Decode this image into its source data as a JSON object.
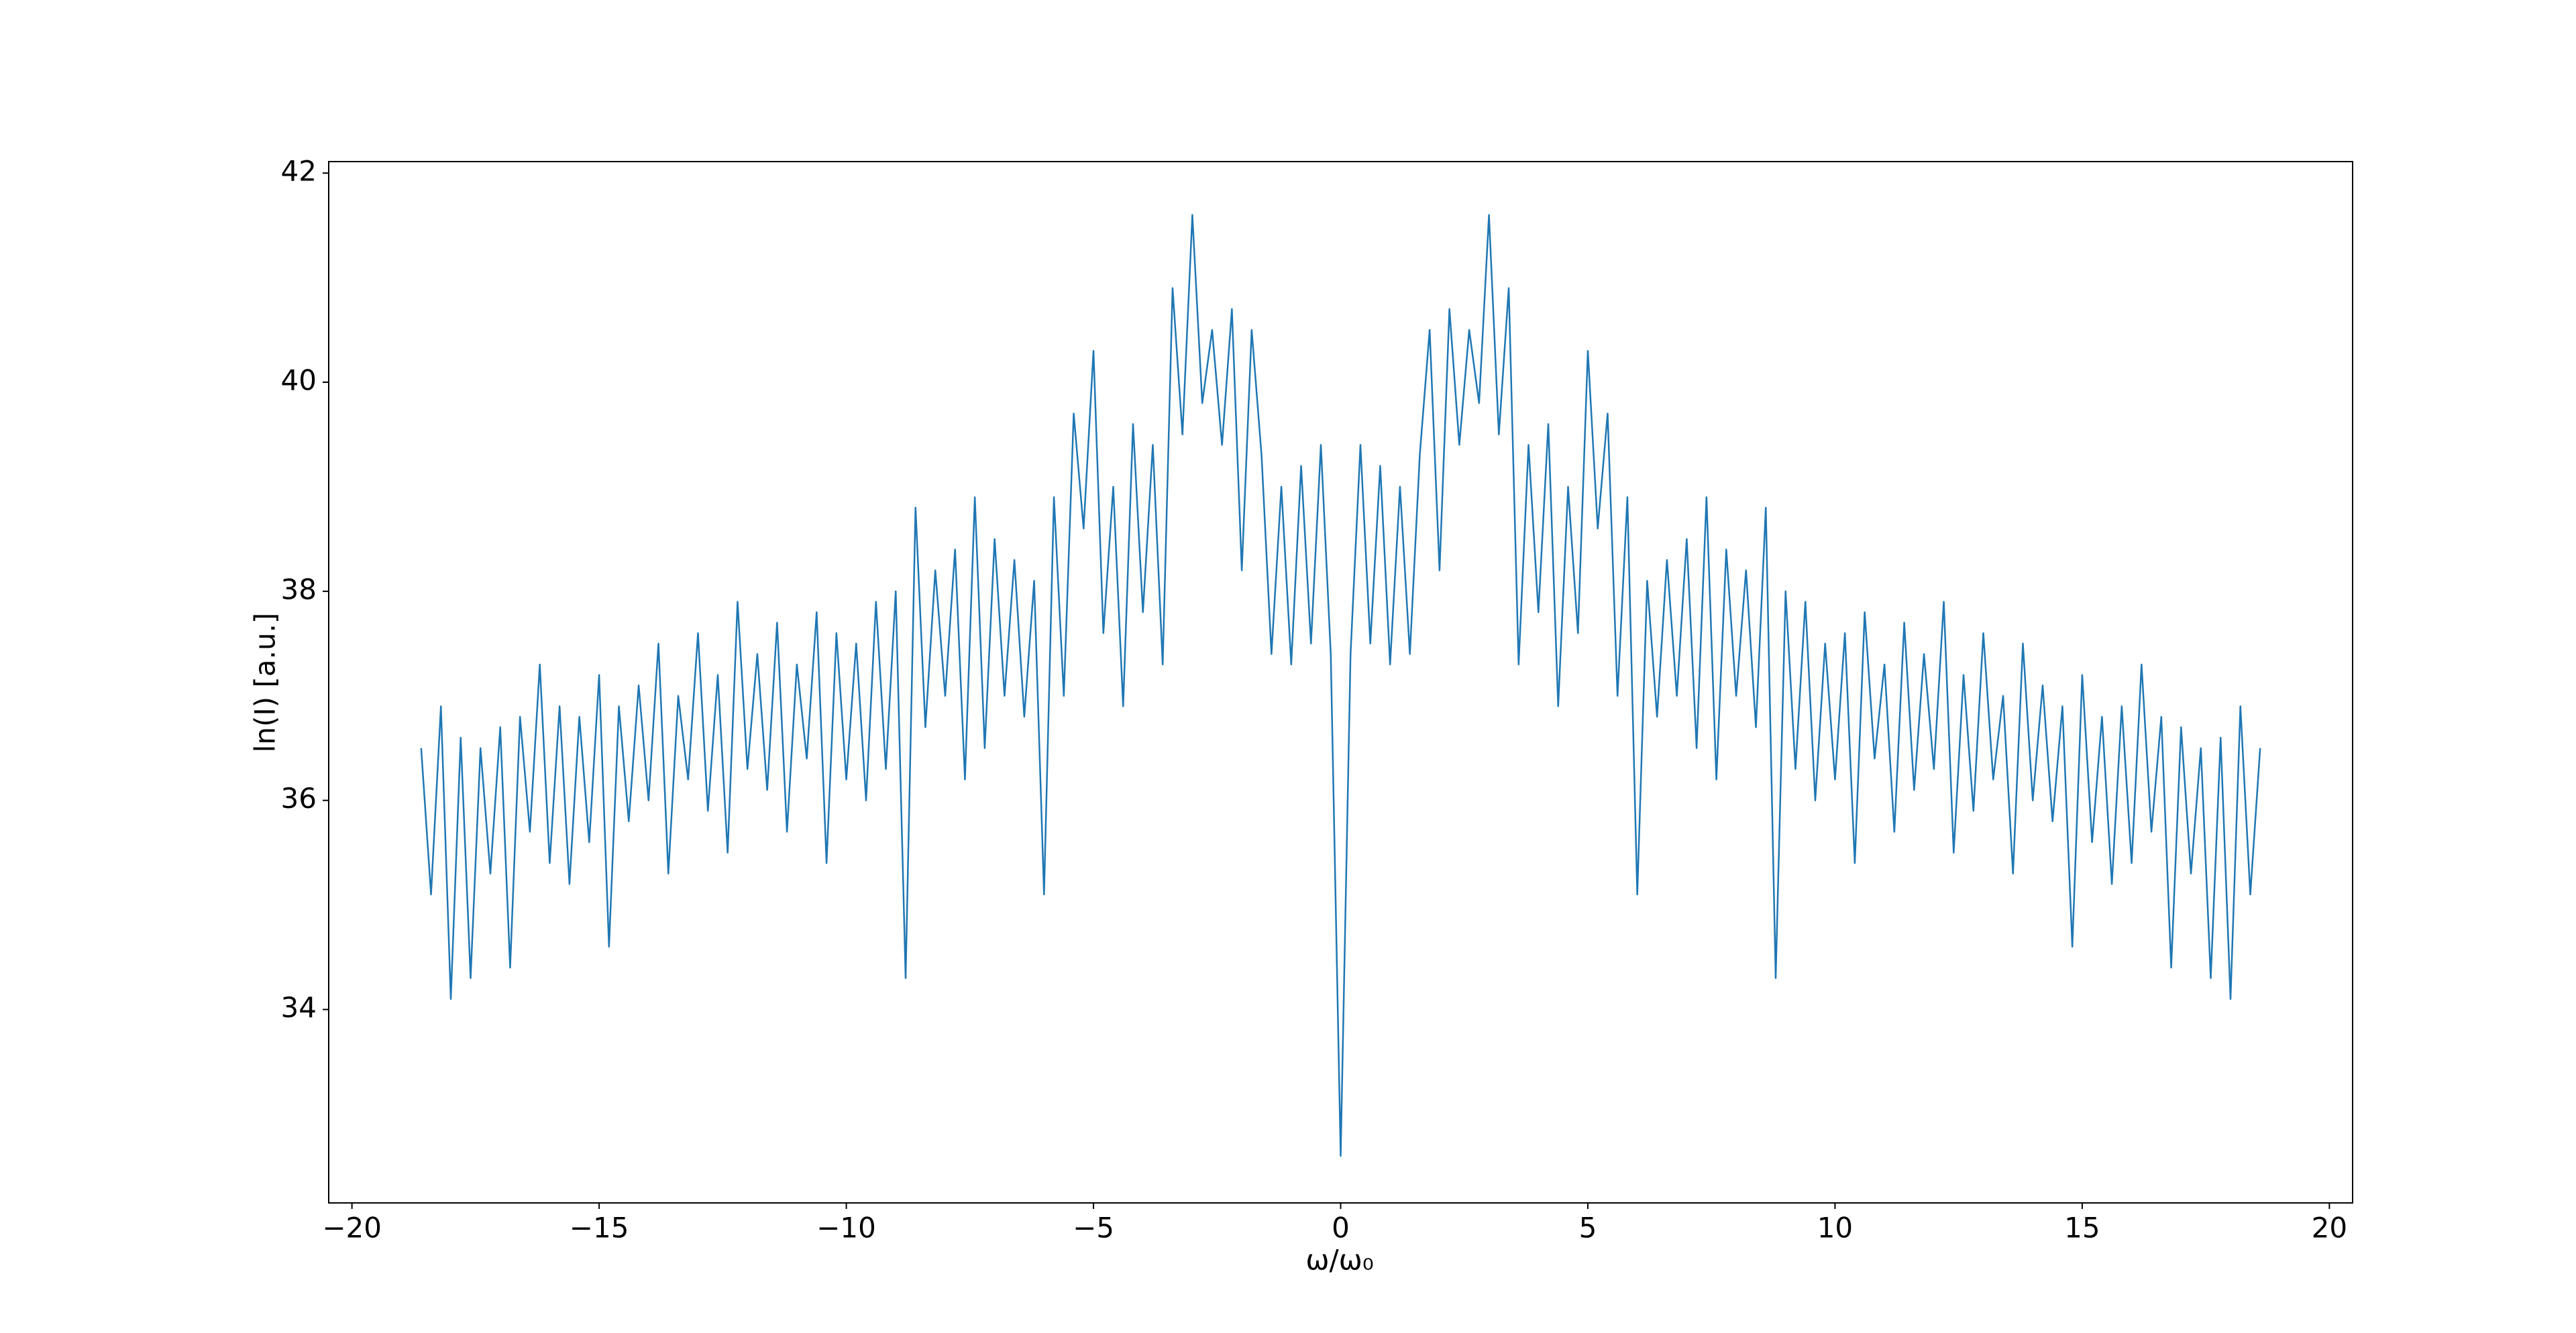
{
  "chart_data": {
    "type": "line",
    "xlabel": "ω/ω₀",
    "ylabel": "ln(I) [a.u.]",
    "color": "#1f77b4",
    "grid": false,
    "xlim": [
      -20.47,
      20.47
    ],
    "ylim": [
      32.15,
      42.11
    ],
    "xticks": [
      {
        "value": -20,
        "label": "−20"
      },
      {
        "value": -15,
        "label": "−15"
      },
      {
        "value": -10,
        "label": "−10"
      },
      {
        "value": -5,
        "label": "−5"
      },
      0,
      5,
      10,
      15,
      20
    ],
    "yticks": [
      34,
      36,
      38,
      40,
      42
    ],
    "x": [
      -18.6,
      -18.4,
      -18.2,
      -18.0,
      -17.8,
      -17.6,
      -17.4,
      -17.2,
      -17.0,
      -16.8,
      -16.6,
      -16.4,
      -16.2,
      -16.0,
      -15.8,
      -15.6,
      -15.4,
      -15.2,
      -15.0,
      -14.8,
      -14.6,
      -14.4,
      -14.2,
      -14.0,
      -13.8,
      -13.6,
      -13.4,
      -13.2,
      -13.0,
      -12.8,
      -12.6,
      -12.4,
      -12.2,
      -12.0,
      -11.8,
      -11.6,
      -11.4,
      -11.2,
      -11.0,
      -10.8,
      -10.6,
      -10.4,
      -10.2,
      -10.0,
      -9.8,
      -9.6,
      -9.4,
      -9.2,
      -9.0,
      -8.8,
      -8.6,
      -8.4,
      -8.2,
      -8.0,
      -7.8,
      -7.6,
      -7.4,
      -7.2,
      -7.0,
      -6.8,
      -6.6,
      -6.4,
      -6.2,
      -6.0,
      -5.8,
      -5.6,
      -5.4,
      -5.2,
      -5.0,
      -4.8,
      -4.6,
      -4.4,
      -4.2,
      -4.0,
      -3.8,
      -3.6,
      -3.4,
      -3.2,
      -3.0,
      -2.8,
      -2.6,
      -2.4,
      -2.2,
      -2.0,
      -1.8,
      -1.6,
      -1.4,
      -1.2,
      -1.0,
      -0.8,
      -0.6,
      -0.4,
      -0.2,
      0,
      0.2,
      0.4,
      0.6,
      0.8,
      1.0,
      1.2,
      1.4,
      1.6,
      1.8,
      2.0,
      2.2,
      2.4,
      2.6,
      2.8,
      3.0,
      3.2,
      3.4,
      3.6,
      3.8,
      4.0,
      4.2,
      4.4,
      4.6,
      4.8,
      5.0,
      5.2,
      5.4,
      5.6,
      5.8,
      6.0,
      6.2,
      6.4,
      6.6,
      6.8,
      7.0,
      7.2,
      7.4,
      7.6,
      7.8,
      8.0,
      8.2,
      8.4,
      8.6,
      8.8,
      9.0,
      9.2,
      9.4,
      9.6,
      9.8,
      10.0,
      10.2,
      10.4,
      10.6,
      10.8,
      11.0,
      11.2,
      11.4,
      11.6,
      11.8,
      12.0,
      12.2,
      12.4,
      12.6,
      12.8,
      13.0,
      13.2,
      13.4,
      13.6,
      13.8,
      14.0,
      14.2,
      14.4,
      14.6,
      14.8,
      15.0,
      15.2,
      15.4,
      15.6,
      15.8,
      16.0,
      16.2,
      16.4,
      16.6,
      16.8,
      17.0,
      17.2,
      17.4,
      17.6,
      17.8,
      18.0,
      18.2,
      18.4,
      18.6
    ],
    "values": [
      36.5,
      35.1,
      36.9,
      34.1,
      36.6,
      34.3,
      36.5,
      35.3,
      36.7,
      34.4,
      36.8,
      35.7,
      37.3,
      35.4,
      36.9,
      35.2,
      36.8,
      35.6,
      37.2,
      34.6,
      36.9,
      35.8,
      37.1,
      36.0,
      37.5,
      35.3,
      37.0,
      36.2,
      37.6,
      35.9,
      37.2,
      35.5,
      37.9,
      36.3,
      37.4,
      36.1,
      37.7,
      35.7,
      37.3,
      36.4,
      37.8,
      35.4,
      37.6,
      36.2,
      37.5,
      36.0,
      37.9,
      36.3,
      38.0,
      34.3,
      38.8,
      36.7,
      38.2,
      37.0,
      38.4,
      36.2,
      38.9,
      36.5,
      38.5,
      37.0,
      38.3,
      36.8,
      38.1,
      35.1,
      38.9,
      37.0,
      39.7,
      38.6,
      40.3,
      37.6,
      39.0,
      36.9,
      39.6,
      37.8,
      39.4,
      37.3,
      40.9,
      39.5,
      41.6,
      39.8,
      40.5,
      39.4,
      40.7,
      38.2,
      40.5,
      39.3,
      37.4,
      39.0,
      37.3,
      39.2,
      37.5,
      39.4,
      37.4,
      32.6,
      37.4,
      39.4,
      37.5,
      39.2,
      37.3,
      39.0,
      37.4,
      39.3,
      40.5,
      38.2,
      40.7,
      39.4,
      40.5,
      39.8,
      41.6,
      39.5,
      40.9,
      37.3,
      39.4,
      37.8,
      39.6,
      36.9,
      39.0,
      37.6,
      40.3,
      38.6,
      39.7,
      37.0,
      38.9,
      35.1,
      38.1,
      36.8,
      38.3,
      37.0,
      38.5,
      36.5,
      38.9,
      36.2,
      38.4,
      37.0,
      38.2,
      36.7,
      38.8,
      34.3,
      38.0,
      36.3,
      37.9,
      36.0,
      37.5,
      36.2,
      37.6,
      35.4,
      37.8,
      36.4,
      37.3,
      35.7,
      37.7,
      36.1,
      37.4,
      36.3,
      37.9,
      35.5,
      37.2,
      35.9,
      37.6,
      36.2,
      37.0,
      35.3,
      37.5,
      36.0,
      37.1,
      35.8,
      36.9,
      34.6,
      37.2,
      35.6,
      36.8,
      35.2,
      36.9,
      35.4,
      37.3,
      35.7,
      36.8,
      34.4,
      36.7,
      35.3,
      36.5,
      34.3,
      36.6,
      34.1,
      36.9,
      35.1,
      36.5
    ]
  }
}
